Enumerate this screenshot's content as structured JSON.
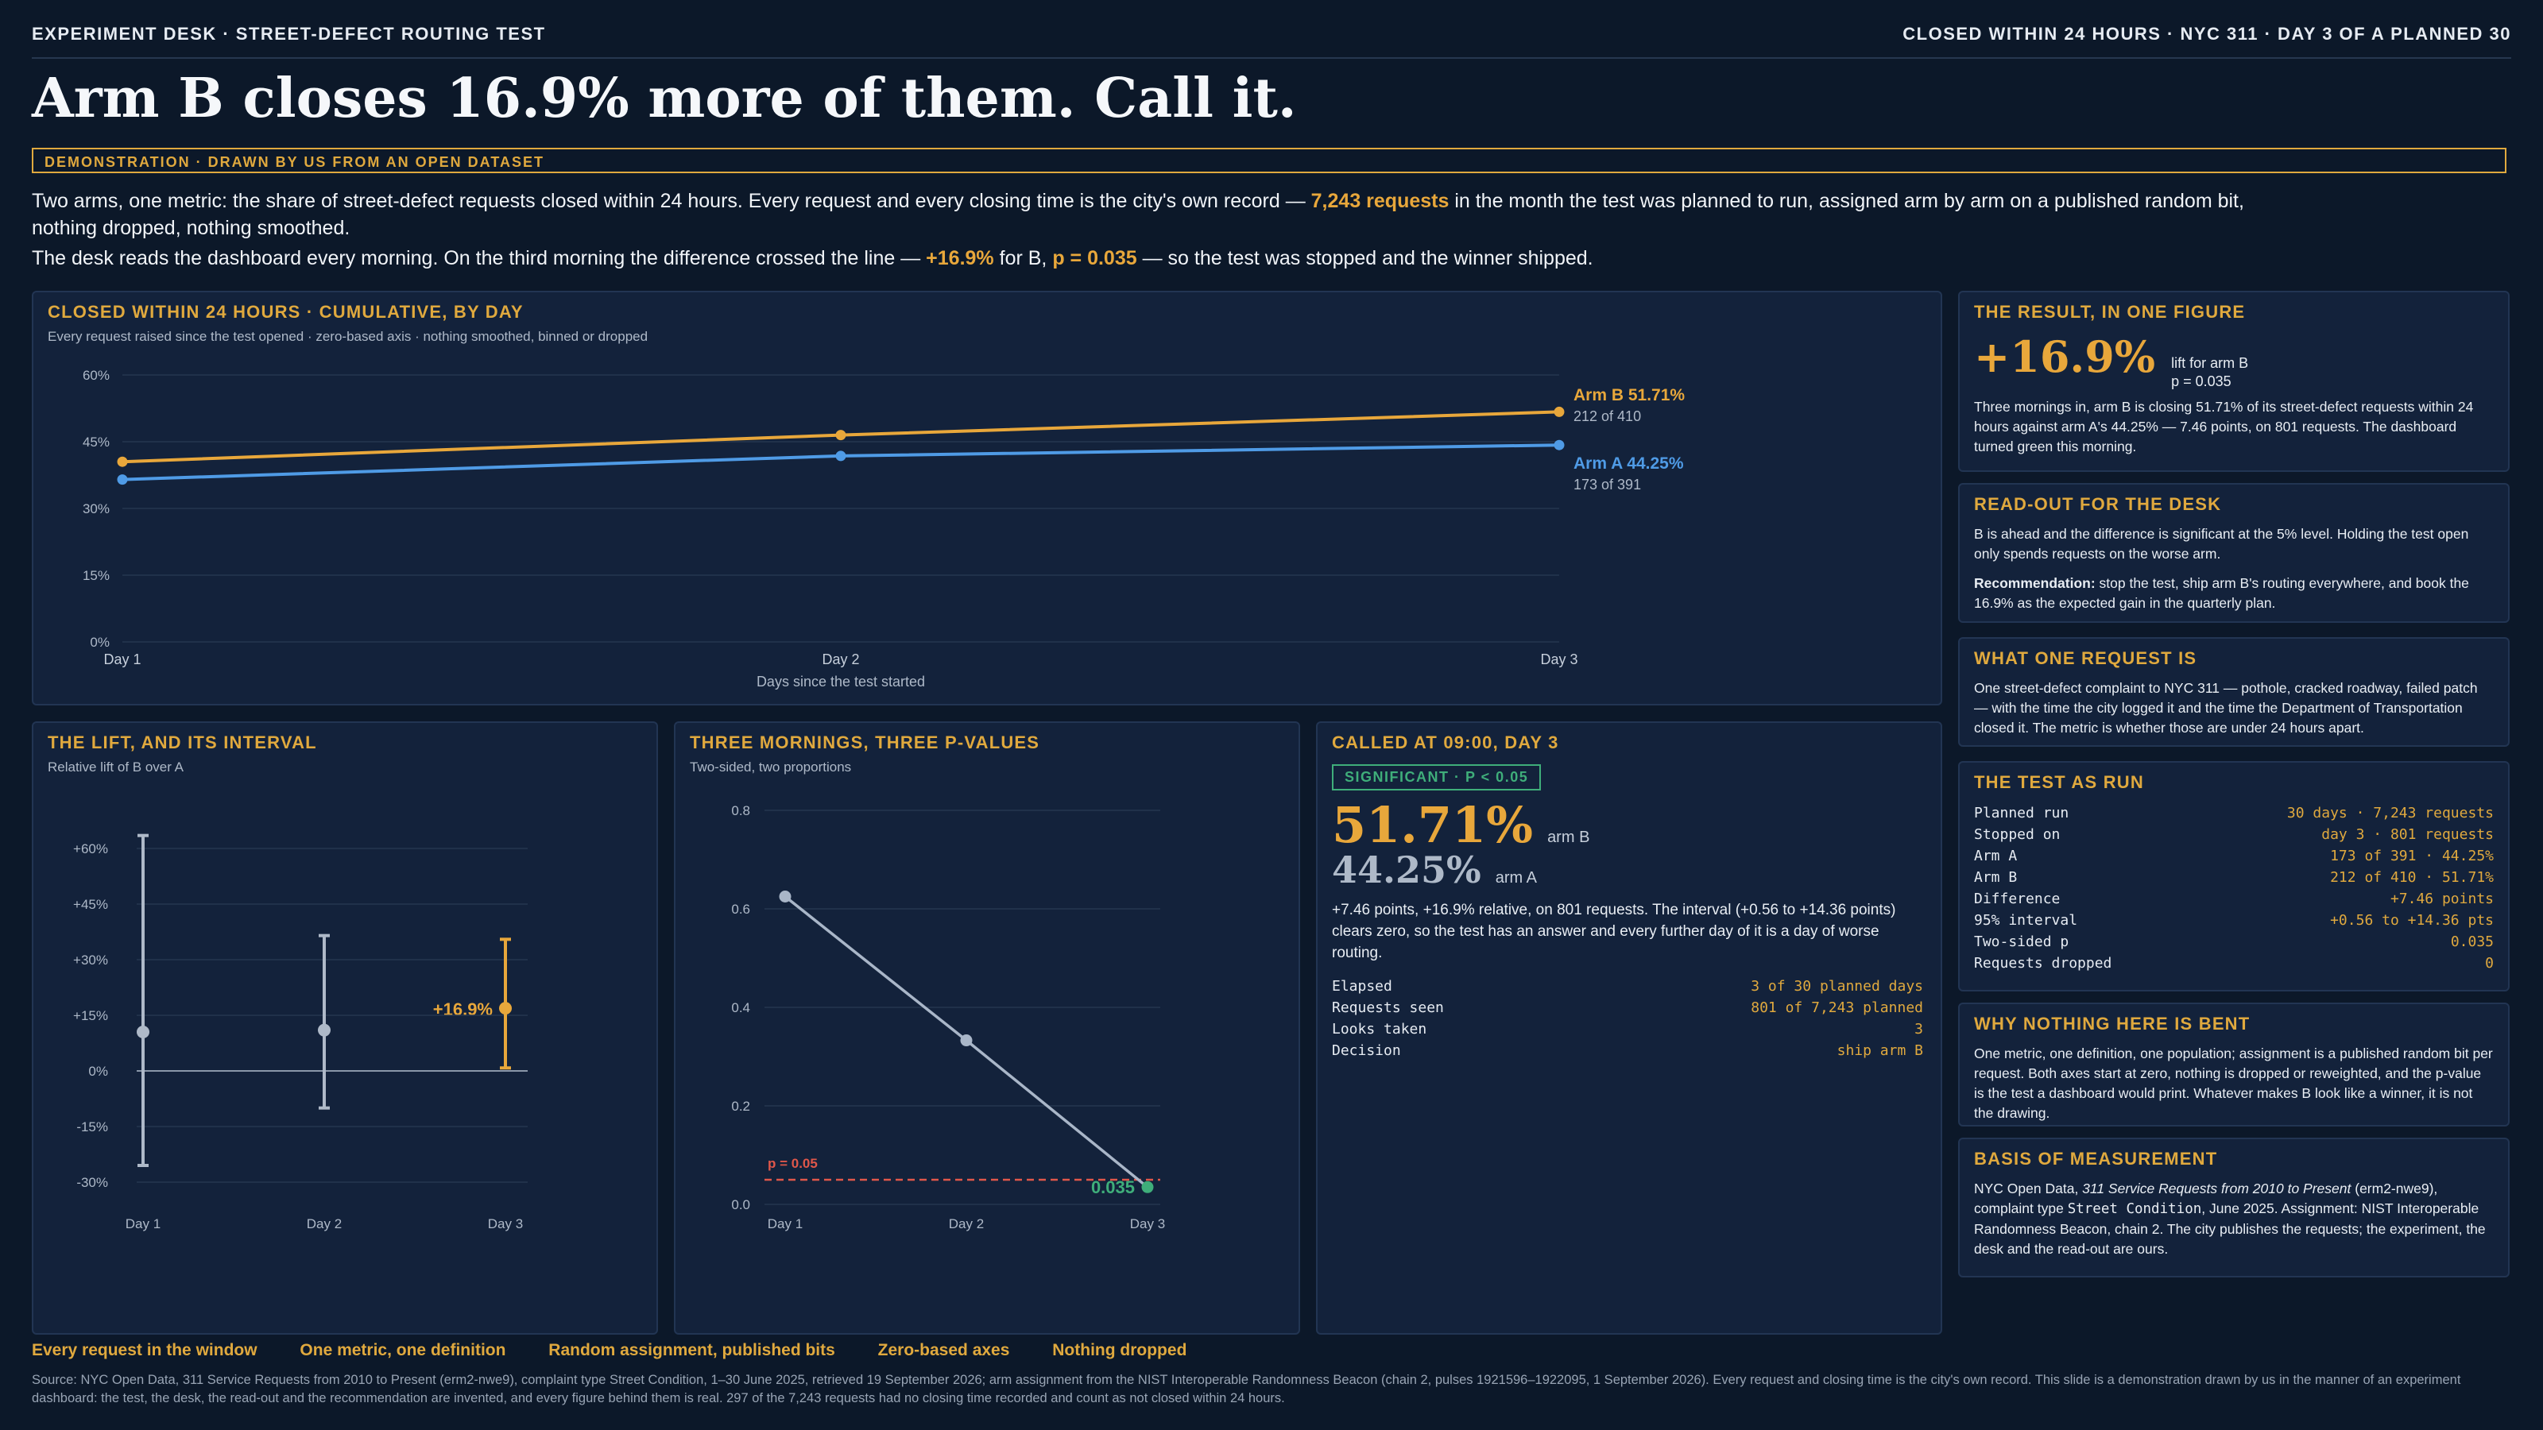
{
  "header": {
    "kicker_left": "EXPERIMENT DESK · STREET-DEFECT ROUTING TEST",
    "kicker_right": "CLOSED WITHIN 24 HOURS · NYC 311 · DAY 3 OF A PLANNED 30",
    "headline": "Arm B closes 16.9% more of them. Call it.",
    "demo_tag": "DEMONSTRATION · DRAWN BY US FROM AN OPEN DATASET"
  },
  "lede": {
    "p1_a": "Two arms, one metric: the share of street-defect requests closed within 24 hours. Every request and every closing time is the city's own record — ",
    "p1_hl": "7,243 requests",
    "p1_b": " in the month the test was planned to run, assigned arm by arm on a published random bit, nothing dropped, nothing smoothed.",
    "p2_a": "The desk reads the dashboard every morning. On the third morning the difference crossed the line — ",
    "p2_hl1": "+16.9%",
    "p2_b": " for B, ",
    "p2_hl2": "p = 0.035",
    "p2_c": " — so the test was stopped and the winner shipped."
  },
  "main_chart": {
    "title": "CLOSED WITHIN 24 HOURS · CUMULATIVE, BY DAY",
    "subtitle": "Every request raised since the test opened · zero-based axis · nothing smoothed, binned or dropped",
    "arm_b_label": "Arm B 51.71%",
    "arm_b_count": "212 of 410",
    "arm_a_label": "Arm A 44.25%",
    "arm_a_count": "173 of 391"
  },
  "lift_panel": {
    "title": "THE LIFT, AND ITS INTERVAL",
    "subtitle": "Relative lift of B over A",
    "callout": "+16.9%"
  },
  "pvalue_panel": {
    "title": "THREE MORNINGS, THREE P-VALUES",
    "subtitle": "Two-sided, two proportions",
    "threshold_label": "p = 0.05",
    "final_label": "0.035"
  },
  "called_panel": {
    "title": "CALLED AT 09:00, DAY 3",
    "badge": "SIGNIFICANT · P < 0.05",
    "big_b": "51.71%",
    "big_b_label": "arm B",
    "big_a": "44.25%",
    "big_a_label": "arm A",
    "body": "+7.46 points, +16.9% relative, on 801 requests. The interval (+0.56 to +14.36 points) clears zero, so the test has an answer and every further day of it is a day of worse routing.",
    "rows": [
      {
        "k": "Elapsed",
        "v": "3 of 30 planned days"
      },
      {
        "k": "Requests seen",
        "v": "801 of 7,243 planned"
      },
      {
        "k": "Looks taken",
        "v": "3"
      },
      {
        "k": "Decision",
        "v": "ship arm B"
      }
    ]
  },
  "sidebar": {
    "result_title": "THE RESULT, IN ONE FIGURE",
    "result_big": "+16.9%",
    "result_note1": "lift for arm B",
    "result_note2": "p = 0.035",
    "result_body": "Three mornings in, arm B is closing 51.71% of its street-defect requests within 24 hours against arm A's 44.25% — 7.46 points, on 801 requests. The dashboard turned green this morning.",
    "readout_title": "READ-OUT FOR THE DESK",
    "readout_p1": "B is ahead and the difference is significant at the 5% level. Holding the test open only spends requests on the worse arm.",
    "readout_rec_label": "Recommendation:",
    "readout_rec": " stop the test, ship arm B's routing everywhere, and book the 16.9% as the expected gain in the quarterly plan.",
    "request_title": "WHAT ONE REQUEST IS",
    "request_body": "One street-defect complaint to NYC 311 — pothole, cracked roadway, failed patch — with the time the city logged it and the time the Department of Transportation closed it. The metric is whether those are under 24 hours apart.",
    "test_title": "THE TEST AS RUN",
    "test_rows": [
      {
        "k": "Planned run",
        "v": "30 days · 7,243 requests"
      },
      {
        "k": "Stopped on",
        "v": "day 3 · 801 requests"
      },
      {
        "k": "Arm A",
        "v": "173 of 391 · 44.25%"
      },
      {
        "k": "Arm B",
        "v": "212 of 410 · 51.71%"
      },
      {
        "k": "Difference",
        "v": "+7.46 points"
      },
      {
        "k": "95% interval",
        "v": "+0.56 to +14.36 pts"
      },
      {
        "k": "Two-sided p",
        "v": "0.035"
      },
      {
        "k": "Requests dropped",
        "v": "0"
      }
    ],
    "bent_title": "WHY NOTHING HERE IS BENT",
    "bent_body": "One metric, one definition, one population; assignment is a published random bit per request. Both axes start at zero, nothing is dropped or reweighted, and the p-value is the test a dashboard would print. Whatever makes B look like a winner, it is not the drawing.",
    "basis_title": "BASIS OF MEASUREMENT",
    "basis_a": "NYC Open Data, ",
    "basis_italic": "311 Service Requests from 2010 to Present",
    "basis_b": " (erm2-nwe9), complaint type ",
    "basis_mono": "Street Condition",
    "basis_c": ", June 2025. Assignment: NIST Interoperable Randomness Beacon, chain 2. The city publishes the requests; the experiment, the desk and the read-out are ours."
  },
  "footer": {
    "tags": [
      "Every request in the window",
      "One metric, one definition",
      "Random assignment, published bits",
      "Zero-based axes",
      "Nothing dropped"
    ],
    "source": "Source: NYC Open Data, 311 Service Requests from 2010 to Present (erm2-nwe9), complaint type Street Condition, 1–30 June 2025, retrieved 19 September 2026; arm assignment from the NIST Interoperable Randomness Beacon (chain 2, pulses 1921596–1922095, 1 September 2026). Every request and closing time is the city's own record. This slide is a demonstration drawn by us in the manner of an experiment dashboard: the test, the desk, the read-out and the recommendation are invented, and every figure behind them is real. 297 of the 7,243 requests had no closing time recorded and count as not closed within 24 hours."
  },
  "colors": {
    "arm_b": "#e8a73b",
    "arm_a": "#4f9be6",
    "pvalue_line": "#a9b6c8",
    "threshold": "#e0574a",
    "significant": "#3fae7a"
  },
  "chart_data": [
    {
      "type": "line",
      "title": "CLOSED WITHIN 24 HOURS · CUMULATIVE, BY DAY",
      "xlabel": "Days since the test started",
      "ylabel": "",
      "categories": [
        "Day 1",
        "Day 2",
        "Day 3"
      ],
      "y_ticks": [
        "0%",
        "15%",
        "30%",
        "45%",
        "60%"
      ],
      "ylim": [
        0,
        60
      ],
      "series": [
        {
          "name": "Arm B",
          "values": [
            40.5,
            46.5,
            51.71
          ]
        },
        {
          "name": "Arm A",
          "values": [
            36.5,
            41.8,
            44.25
          ]
        }
      ],
      "grid": true
    },
    {
      "type": "errorbar",
      "title": "THE LIFT, AND ITS INTERVAL",
      "categories": [
        "Day 1",
        "Day 2",
        "Day 3"
      ],
      "y_ticks": [
        "-30%",
        "-15%",
        "0%",
        "+15%",
        "+30%",
        "+45%",
        "+60%"
      ],
      "ylim": [
        -30,
        60
      ],
      "values": [
        10.5,
        11,
        16.9
      ],
      "lower": [
        -25.5,
        -10,
        0.8
      ],
      "upper": [
        63.5,
        36.5,
        35.5
      ],
      "grid": true
    },
    {
      "type": "line",
      "title": "THREE MORNINGS, THREE P-VALUES",
      "categories": [
        "Day 1",
        "Day 2",
        "Day 3"
      ],
      "y_ticks": [
        "0.0",
        "0.2",
        "0.4",
        "0.6",
        "0.8"
      ],
      "ylim": [
        0,
        0.8
      ],
      "values": [
        0.625,
        0.333,
        0.035
      ],
      "threshold": 0.05,
      "grid": true
    }
  ]
}
